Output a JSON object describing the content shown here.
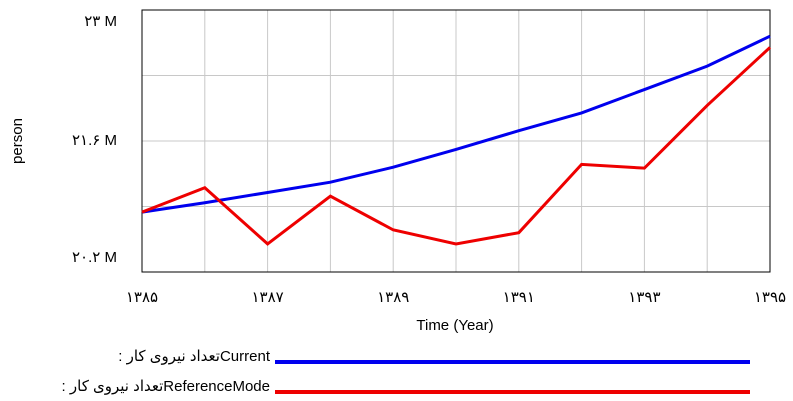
{
  "chart_data": {
    "type": "line",
    "x_label": "Time (Year)",
    "y_label": "person",
    "x": [
      1385,
      1386,
      1387,
      1388,
      1389,
      1390,
      1391,
      1392,
      1393,
      1394,
      1395
    ],
    "xlim": [
      1385,
      1395
    ],
    "xticks": [
      {
        "value": 1385,
        "label": "۱۳۸۵"
      },
      {
        "value": 1387,
        "label": "۱۳۸۷"
      },
      {
        "value": 1389,
        "label": "۱۳۸۹"
      },
      {
        "value": 1391,
        "label": "۱۳۹۱"
      },
      {
        "value": 1393,
        "label": "۱۳۹۳"
      },
      {
        "value": 1395,
        "label": "۱۳۹۵"
      }
    ],
    "x_minor_ticks": [
      1386,
      1388,
      1390,
      1392,
      1394
    ],
    "ylim": [
      20.2,
      23
    ],
    "yticks": [
      {
        "value": 20.2,
        "label": "۲۰.۲ M"
      },
      {
        "value": 21.6,
        "label": "۲۱.۶ M"
      },
      {
        "value": 23,
        "label": "۲۳ M"
      }
    ],
    "y_minor_ticks": [
      20.9,
      22.3
    ],
    "grid": true,
    "legend": "bottom",
    "series": [
      {
        "name": "Currentتعداد نیروی کار :",
        "color": "#0000ee",
        "values": [
          20.84,
          20.94,
          21.05,
          21.16,
          21.32,
          21.51,
          21.71,
          21.9,
          22.15,
          22.4,
          22.72
        ]
      },
      {
        "name": "ReferenceModeتعداد نیروی کار :",
        "color": "#ee0000",
        "values": [
          20.84,
          21.1,
          20.5,
          21.01,
          20.65,
          20.5,
          20.62,
          21.35,
          21.31,
          21.98,
          22.6
        ]
      }
    ]
  }
}
